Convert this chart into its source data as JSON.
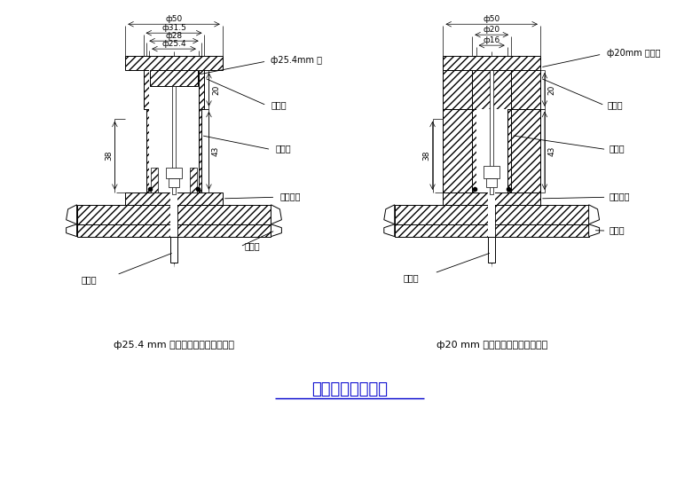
{
  "title": "泄漏密封试验原理",
  "title_color": "#0000CC",
  "caption_left": "ф25.4 mm 气雾阀泄漏试验仪检测头",
  "caption_right": "ф20 mm 气雾阀泄漏试验仪检测头",
  "label_phi254_gas": "ф25.4mm 气",
  "label_upper_cover": "上底盖",
  "label_valve_seat": "阀支座",
  "label_vent_base": "通气底座",
  "label_gas_pipe": "接气管",
  "label_seal_ring": "密封圈",
  "label_phi20_gas": "ф20mm 气雾阀",
  "dim_phi50": "ф50",
  "dim_phi315": "ф31.5",
  "dim_phi28": "ф28",
  "dim_phi254": "ф25.4",
  "dim_phi20": "ф20",
  "dim_phi16": "ф16",
  "dim_20": "20",
  "dim_43": "43",
  "dim_38": "38"
}
